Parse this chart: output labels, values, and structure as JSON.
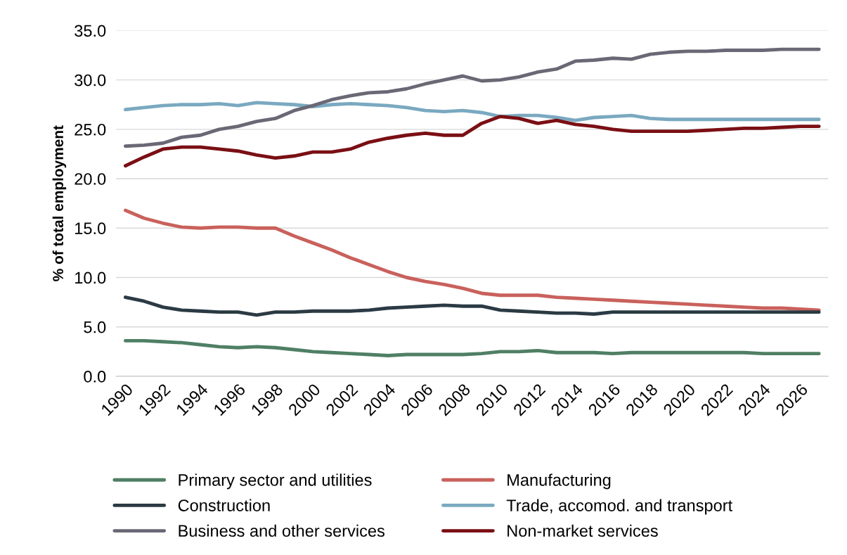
{
  "chart_data": {
    "type": "line",
    "ylabel": "% of total employment",
    "categories": [
      "1990",
      null,
      "1992",
      null,
      "1994",
      null,
      "1996",
      null,
      "1998",
      null,
      "2000",
      null,
      "2002",
      null,
      "2004",
      null,
      "2006",
      null,
      "2008",
      null,
      "2010",
      null,
      "2012",
      null,
      "2014",
      null,
      "2016",
      null,
      "2018",
      null,
      "2020",
      null,
      "2022",
      null,
      "2024",
      null,
      "2026",
      null
    ],
    "series": [
      {
        "name": "Primary sector and utilities",
        "color": "#4f7f64",
        "values": [
          3.6,
          3.6,
          3.5,
          3.4,
          3.2,
          3.0,
          2.9,
          3.0,
          2.9,
          2.7,
          2.5,
          2.4,
          2.3,
          2.2,
          2.1,
          2.2,
          2.2,
          2.2,
          2.2,
          2.3,
          2.5,
          2.5,
          2.6,
          2.4,
          2.4,
          2.4,
          2.3,
          2.4,
          2.4,
          2.4,
          2.4,
          2.4,
          2.4,
          2.4,
          2.3,
          2.3,
          2.3,
          2.3
        ]
      },
      {
        "name": "Manufacturing",
        "color": "#c9615c",
        "values": [
          16.8,
          16.0,
          15.5,
          15.1,
          15.0,
          15.1,
          15.1,
          15.0,
          15.0,
          14.2,
          13.5,
          12.8,
          12.0,
          11.3,
          10.6,
          10.0,
          9.6,
          9.3,
          8.9,
          8.4,
          8.2,
          8.2,
          8.2,
          8.0,
          7.9,
          7.8,
          7.7,
          7.6,
          7.5,
          7.4,
          7.3,
          7.2,
          7.1,
          7.0,
          6.9,
          6.9,
          6.8,
          6.7
        ]
      },
      {
        "name": "Construction",
        "color": "#2b3a44",
        "values": [
          8.0,
          7.6,
          7.0,
          6.7,
          6.6,
          6.5,
          6.5,
          6.2,
          6.5,
          6.5,
          6.6,
          6.6,
          6.6,
          6.7,
          6.9,
          7.0,
          7.1,
          7.2,
          7.1,
          7.1,
          6.7,
          6.6,
          6.5,
          6.4,
          6.4,
          6.3,
          6.5,
          6.5,
          6.5,
          6.5,
          6.5,
          6.5,
          6.5,
          6.5,
          6.5,
          6.5,
          6.5,
          6.5
        ]
      },
      {
        "name": "Trade, accomod. and transport",
        "color": "#7aa9c0",
        "values": [
          27.0,
          27.2,
          27.4,
          27.5,
          27.5,
          27.6,
          27.4,
          27.7,
          27.6,
          27.5,
          27.3,
          27.5,
          27.6,
          27.5,
          27.4,
          27.2,
          26.9,
          26.8,
          26.9,
          26.7,
          26.3,
          26.4,
          26.4,
          26.2,
          25.9,
          26.2,
          26.3,
          26.4,
          26.1,
          26.0,
          26.0,
          26.0,
          26.0,
          26.0,
          26.0,
          26.0,
          26.0,
          26.0
        ]
      },
      {
        "name": "Business and other services",
        "color": "#6a6875",
        "values": [
          23.3,
          23.4,
          23.6,
          24.2,
          24.4,
          25.0,
          25.3,
          25.8,
          26.1,
          26.9,
          27.4,
          28.0,
          28.4,
          28.7,
          28.8,
          29.1,
          29.6,
          30.0,
          30.4,
          29.9,
          30.0,
          30.3,
          30.8,
          31.1,
          31.9,
          32.0,
          32.2,
          32.1,
          32.6,
          32.8,
          32.9,
          32.9,
          33.0,
          33.0,
          33.0,
          33.1,
          33.1,
          33.1
        ]
      },
      {
        "name": "Non-market services",
        "color": "#7a0f14",
        "values": [
          21.3,
          22.2,
          23.0,
          23.2,
          23.2,
          23.0,
          22.8,
          22.4,
          22.1,
          22.3,
          22.7,
          22.7,
          23.0,
          23.7,
          24.1,
          24.4,
          24.6,
          24.4,
          24.4,
          25.6,
          26.3,
          26.1,
          25.6,
          25.9,
          25.5,
          25.3,
          25.0,
          24.8,
          24.8,
          24.8,
          24.8,
          24.9,
          25.0,
          25.1,
          25.1,
          25.2,
          25.3,
          25.3
        ]
      }
    ],
    "ylim": [
      0,
      35
    ],
    "yticks": [
      {
        "value": 0,
        "label": "0.0"
      },
      {
        "value": 5,
        "label": "5.0"
      },
      {
        "value": 10,
        "label": "10.0"
      },
      {
        "value": 15,
        "label": "15.0"
      },
      {
        "value": 20,
        "label": "20.0"
      },
      {
        "value": 25,
        "label": "25.0"
      },
      {
        "value": 30,
        "label": "30.0"
      },
      {
        "value": 35,
        "label": "35.0"
      }
    ],
    "grid": "y",
    "legend": "bottom",
    "marker": "none",
    "line_style": "solid"
  }
}
